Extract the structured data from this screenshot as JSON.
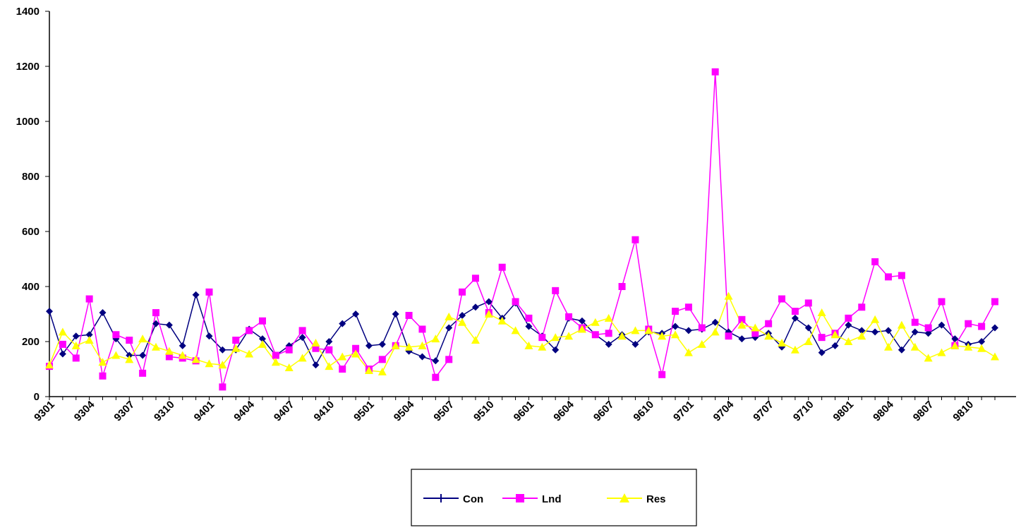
{
  "chart_data": {
    "type": "line",
    "categories": [
      "9301",
      null,
      null,
      "9304",
      null,
      null,
      "9307",
      null,
      null,
      "9310",
      null,
      null,
      "9401",
      null,
      null,
      "9404",
      null,
      null,
      "9407",
      null,
      null,
      "9410",
      null,
      null,
      "9501",
      null,
      null,
      "9504",
      null,
      null,
      "9507",
      null,
      null,
      "9510",
      null,
      null,
      "9601",
      null,
      null,
      "9604",
      null,
      null,
      "9607",
      null,
      null,
      "9610",
      null,
      null,
      "9701",
      null,
      null,
      "9704",
      null,
      null,
      "9707",
      null,
      null,
      "9710",
      null,
      null,
      "9801",
      null,
      null,
      "9804",
      null,
      null,
      "9807",
      null,
      null,
      "9810",
      null,
      null
    ],
    "series": [
      {
        "name": "Con",
        "color": "#000080",
        "values": [
          310,
          155,
          220,
          225,
          305,
          210,
          150,
          150,
          265,
          260,
          185,
          370,
          220,
          170,
          170,
          245,
          210,
          150,
          185,
          215,
          115,
          200,
          265,
          300,
          185,
          190,
          300,
          165,
          145,
          130,
          250,
          295,
          325,
          345,
          285,
          340,
          255,
          220,
          170,
          285,
          275,
          225,
          190,
          225,
          190,
          235,
          230,
          255,
          240,
          245,
          270,
          235,
          210,
          215,
          230,
          180,
          285,
          250,
          160,
          185,
          260,
          240,
          235,
          240,
          170,
          235,
          230,
          260,
          210,
          190,
          200,
          250
        ]
      },
      {
        "name": "Lnd",
        "color": "#ff00ff",
        "values": [
          110,
          190,
          140,
          355,
          75,
          225,
          205,
          85,
          305,
          145,
          140,
          130,
          380,
          35,
          205,
          240,
          275,
          150,
          170,
          240,
          175,
          170,
          100,
          175,
          100,
          135,
          185,
          295,
          245,
          70,
          135,
          380,
          430,
          305,
          470,
          345,
          285,
          215,
          385,
          290,
          250,
          225,
          230,
          400,
          570,
          245,
          80,
          310,
          325,
          250,
          1180,
          220,
          280,
          230,
          265,
          355,
          310,
          340,
          215,
          230,
          285,
          325,
          490,
          435,
          440,
          270,
          250,
          345,
          185,
          265,
          255,
          345
        ]
      },
      {
        "name": "Res",
        "color": "#ffff00",
        "values": [
          115,
          235,
          185,
          205,
          125,
          150,
          135,
          210,
          180,
          165,
          150,
          135,
          120,
          115,
          175,
          155,
          190,
          125,
          105,
          140,
          195,
          110,
          145,
          155,
          95,
          90,
          185,
          180,
          185,
          210,
          290,
          270,
          205,
          300,
          275,
          240,
          185,
          180,
          215,
          220,
          245,
          270,
          285,
          220,
          240,
          240,
          220,
          225,
          160,
          190,
          235,
          365,
          260,
          250,
          220,
          195,
          170,
          200,
          305,
          225,
          200,
          220,
          280,
          180,
          260,
          180,
          140,
          160,
          185,
          180,
          175,
          145
        ]
      }
    ],
    "ylim": [
      0,
      1400
    ],
    "yticks": [
      0,
      200,
      400,
      600,
      800,
      1000,
      1200,
      1400
    ],
    "grid": false,
    "legend": "bottom"
  }
}
